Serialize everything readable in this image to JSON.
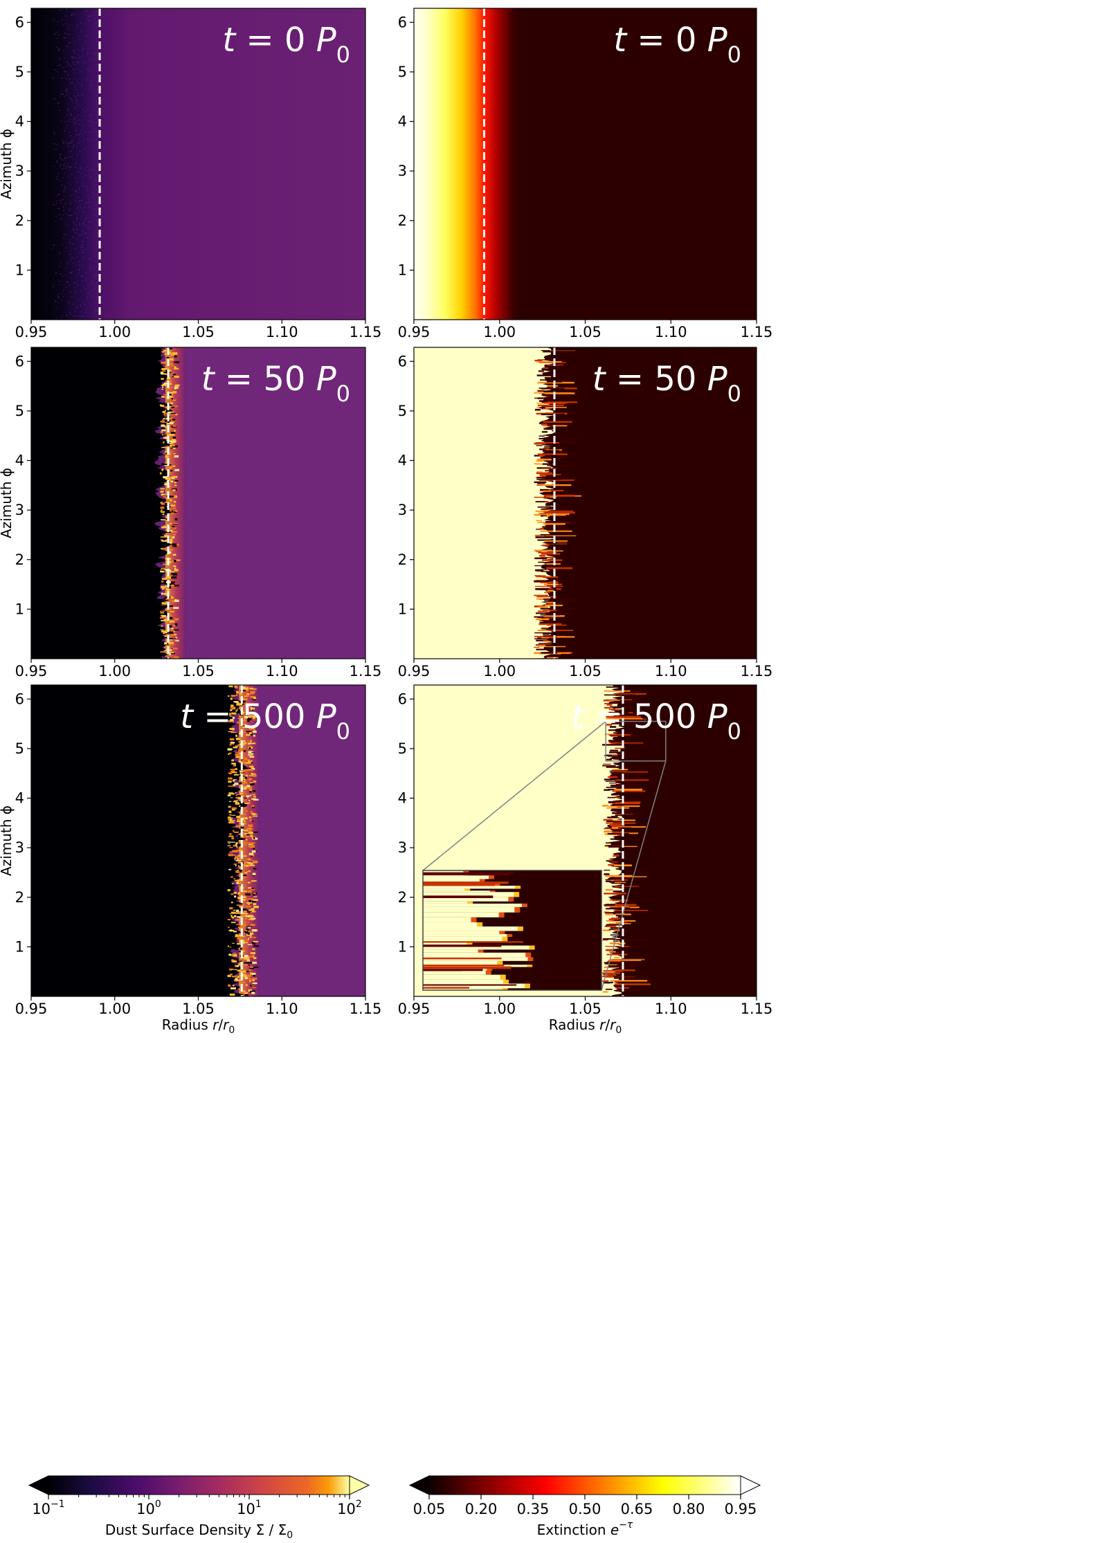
{
  "chart_data": [
    {
      "type": "heatmap",
      "field": "density",
      "annotation": "t = 0 P0",
      "annotation_parts": [
        "t",
        " = 0 ",
        "P",
        "0"
      ],
      "x_ticks": [
        "0.95",
        "1.00",
        "1.05",
        "1.10",
        "1.15"
      ],
      "y_ticks": [
        "1",
        "2",
        "3",
        "4",
        "5",
        "6"
      ],
      "xlim": [
        0.95,
        1.15
      ],
      "ylim": [
        0,
        6.283
      ],
      "ylabel": "Azimuth ϕ",
      "xlabel": "",
      "front_radius": 0.991,
      "dashed_line_radius": 0.991,
      "edge_style": "smooth",
      "inset": false
    },
    {
      "type": "heatmap",
      "field": "extinction",
      "annotation": "t = 0 P0",
      "annotation_parts": [
        "t",
        " = 0 ",
        "P",
        "0"
      ],
      "x_ticks": [
        "0.95",
        "1.00",
        "1.05",
        "1.10",
        "1.15"
      ],
      "y_ticks": [
        "1",
        "2",
        "3",
        "4",
        "5",
        "6"
      ],
      "xlim": [
        0.95,
        1.15
      ],
      "ylim": [
        0,
        6.283
      ],
      "ylabel": "",
      "xlabel": "",
      "front_radius": 0.991,
      "dashed_line_radius": 0.991,
      "edge_style": "smooth",
      "inset": false
    },
    {
      "type": "heatmap",
      "field": "density",
      "annotation": "t = 50 P0",
      "annotation_parts": [
        "t",
        " = 50 ",
        "P",
        "0"
      ],
      "x_ticks": [
        "0.95",
        "1.00",
        "1.05",
        "1.10",
        "1.15"
      ],
      "y_ticks": [
        "1",
        "2",
        "3",
        "4",
        "5",
        "6"
      ],
      "xlim": [
        0.95,
        1.15
      ],
      "ylim": [
        0,
        6.283
      ],
      "ylabel": "Azimuth ϕ",
      "xlabel": "",
      "front_radius": 1.032,
      "dashed_line_radius": 1.032,
      "edge_style": "fingered",
      "inset": false
    },
    {
      "type": "heatmap",
      "field": "extinction",
      "annotation": "t = 50 P0",
      "annotation_parts": [
        "t",
        " = 50 ",
        "P",
        "0"
      ],
      "x_ticks": [
        "0.95",
        "1.00",
        "1.05",
        "1.10",
        "1.15"
      ],
      "y_ticks": [
        "1",
        "2",
        "3",
        "4",
        "5",
        "6"
      ],
      "xlim": [
        0.95,
        1.15
      ],
      "ylim": [
        0,
        6.283
      ],
      "ylabel": "",
      "xlabel": "",
      "front_radius": 1.032,
      "dashed_line_radius": 1.032,
      "edge_style": "fingered",
      "inset": false
    },
    {
      "type": "heatmap",
      "field": "density",
      "annotation": "t = 500 P0",
      "annotation_parts": [
        "t",
        " = 500 ",
        "P",
        "0"
      ],
      "x_ticks": [
        "0.95",
        "1.00",
        "1.05",
        "1.10",
        "1.15"
      ],
      "y_ticks": [
        "1",
        "2",
        "3",
        "4",
        "5",
        "6"
      ],
      "xlim": [
        0.95,
        1.15
      ],
      "ylim": [
        0,
        6.283
      ],
      "ylabel": "Azimuth ϕ",
      "xlabel": "Radius r/r0",
      "xlabel_parts": [
        "Radius ",
        "r",
        "/",
        "r",
        "0"
      ],
      "front_radius": 1.076,
      "dashed_line_radius": 1.076,
      "edge_style": "fingered",
      "inset": false
    },
    {
      "type": "heatmap",
      "field": "extinction",
      "annotation": "t = 500 P0",
      "annotation_parts": [
        "t",
        " = 500 ",
        "P",
        "0"
      ],
      "x_ticks": [
        "0.95",
        "1.00",
        "1.05",
        "1.10",
        "1.15"
      ],
      "y_ticks": [
        "1",
        "2",
        "3",
        "4",
        "5",
        "6"
      ],
      "xlim": [
        0.95,
        1.15
      ],
      "ylim": [
        0,
        6.283
      ],
      "ylabel": "",
      "xlabel": "Radius r/r0",
      "xlabel_parts": [
        "Radius ",
        "r",
        "/",
        "r",
        "0"
      ],
      "front_radius": 1.072,
      "dashed_line_radius": 1.072,
      "edge_style": "fingered",
      "inset": true,
      "zoom_box": {
        "r": [
          1.062,
          1.097
        ],
        "phi": [
          4.75,
          5.55
        ]
      }
    }
  ],
  "colorbars": [
    {
      "field": "density",
      "scale": "log",
      "colormap": "inferno",
      "range": [
        0.1,
        100
      ],
      "ticks": [
        {
          "value": 0.1,
          "base": "10",
          "exp": "−1"
        },
        {
          "value": 1,
          "base": "10",
          "exp": "0"
        },
        {
          "value": 10,
          "base": "10",
          "exp": "1"
        },
        {
          "value": 100,
          "base": "10",
          "exp": "2"
        }
      ],
      "label": "Dust Surface Density Σ / Σ0",
      "label_parts": [
        "Dust Surface Density Σ / Σ",
        "0"
      ],
      "extend": "both"
    },
    {
      "field": "extinction",
      "scale": "linear",
      "colormap": "hot",
      "range": [
        0.05,
        0.95
      ],
      "ticks": [
        {
          "value": 0.05,
          "label": "0.05"
        },
        {
          "value": 0.2,
          "label": "0.20"
        },
        {
          "value": 0.35,
          "label": "0.35"
        },
        {
          "value": 0.5,
          "label": "0.50"
        },
        {
          "value": 0.65,
          "label": "0.65"
        },
        {
          "value": 0.8,
          "label": "0.80"
        },
        {
          "value": 0.95,
          "label": "0.95"
        }
      ],
      "label": "Extinction e−τ",
      "label_parts": [
        "Extinction ",
        "e",
        "−τ"
      ],
      "extend": "both"
    }
  ],
  "colors": {
    "density_background": "#6b2173",
    "density_inner": "#000004",
    "extinction_inner": "#ffffc8",
    "extinction_outer": "#2d0000",
    "dashed_line": "#ffffff",
    "zoom_box": "#808080"
  }
}
